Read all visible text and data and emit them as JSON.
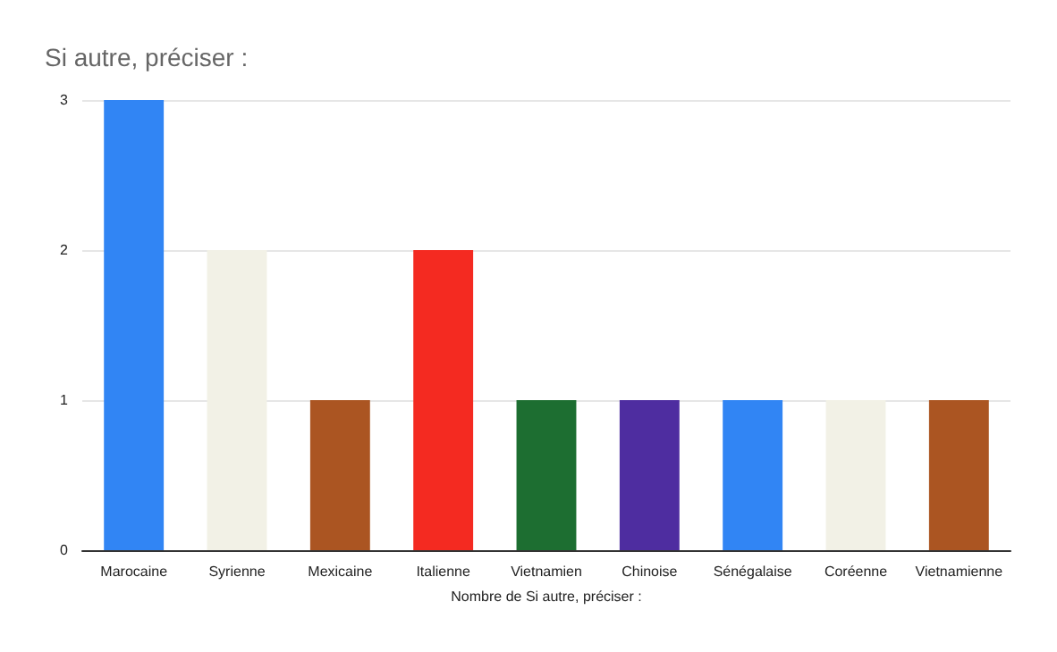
{
  "chart_data": {
    "type": "bar",
    "title": "Si autre, préciser :",
    "xlabel": "Nombre de Si autre, préciser :",
    "categories": [
      "Marocaine",
      "Syrienne",
      "Mexicaine",
      "Italienne",
      "Vietnamien",
      "Chinoise",
      "Sénégalaise",
      "Coréenne",
      "Vietnamienne"
    ],
    "values": [
      3,
      2,
      1,
      2,
      1,
      1,
      1,
      1,
      1
    ],
    "colors": [
      "#3185f4",
      "#f2f1e6",
      "#ab5522",
      "#f42a21",
      "#1d6e31",
      "#4e2da0",
      "#3185f4",
      "#f2f1e6",
      "#ab5522"
    ],
    "ylim": [
      0,
      3
    ],
    "yticks": [
      0,
      1,
      2,
      3
    ],
    "grid": "y"
  }
}
